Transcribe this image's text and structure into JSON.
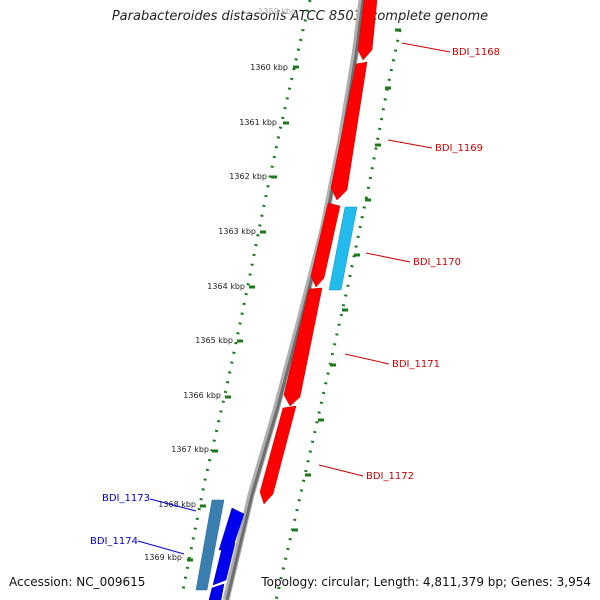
{
  "header": {
    "title": "Parabacteroides distasonis ATCC 8503, complete genome"
  },
  "footer": {
    "accession": "Accession: NC_009615",
    "summary": "Topology: circular; Length: 4,811,379 bp; Genes: 3,954"
  },
  "scale": {
    "tick_labels": [
      "1359 kbp",
      "1360 kbp",
      "1361 kbp",
      "1362 kbp",
      "1363 kbp",
      "1364 kbp",
      "1365 kbp",
      "1366 kbp",
      "1367 kbp",
      "1368 kbp",
      "1369 kbp"
    ]
  },
  "genes": [
    {
      "name": "BDI_1168",
      "strand": "forward",
      "color": "#ff0000"
    },
    {
      "name": "BDI_1169",
      "strand": "forward",
      "color": "#ff0000"
    },
    {
      "name": "BDI_1170",
      "strand": "reverse",
      "color": "#22bbee"
    },
    {
      "name": "BDI_1171",
      "strand": "forward",
      "color": "#ff0000"
    },
    {
      "name": "BDI_1172",
      "strand": "forward",
      "color": "#ff0000"
    },
    {
      "name": "BDI_1173",
      "strand": "reverse",
      "color": "#0000ee"
    },
    {
      "name": "BDI_1174",
      "strand": "reverse",
      "color": "#0000ee"
    }
  ],
  "colors": {
    "backbone": "#888888",
    "tick_ring": "#1a7a1a",
    "forward_gene": "#ff0000",
    "reverse_gene_cyan": "#22bbee",
    "reverse_gene_blue": "#0000ee"
  }
}
